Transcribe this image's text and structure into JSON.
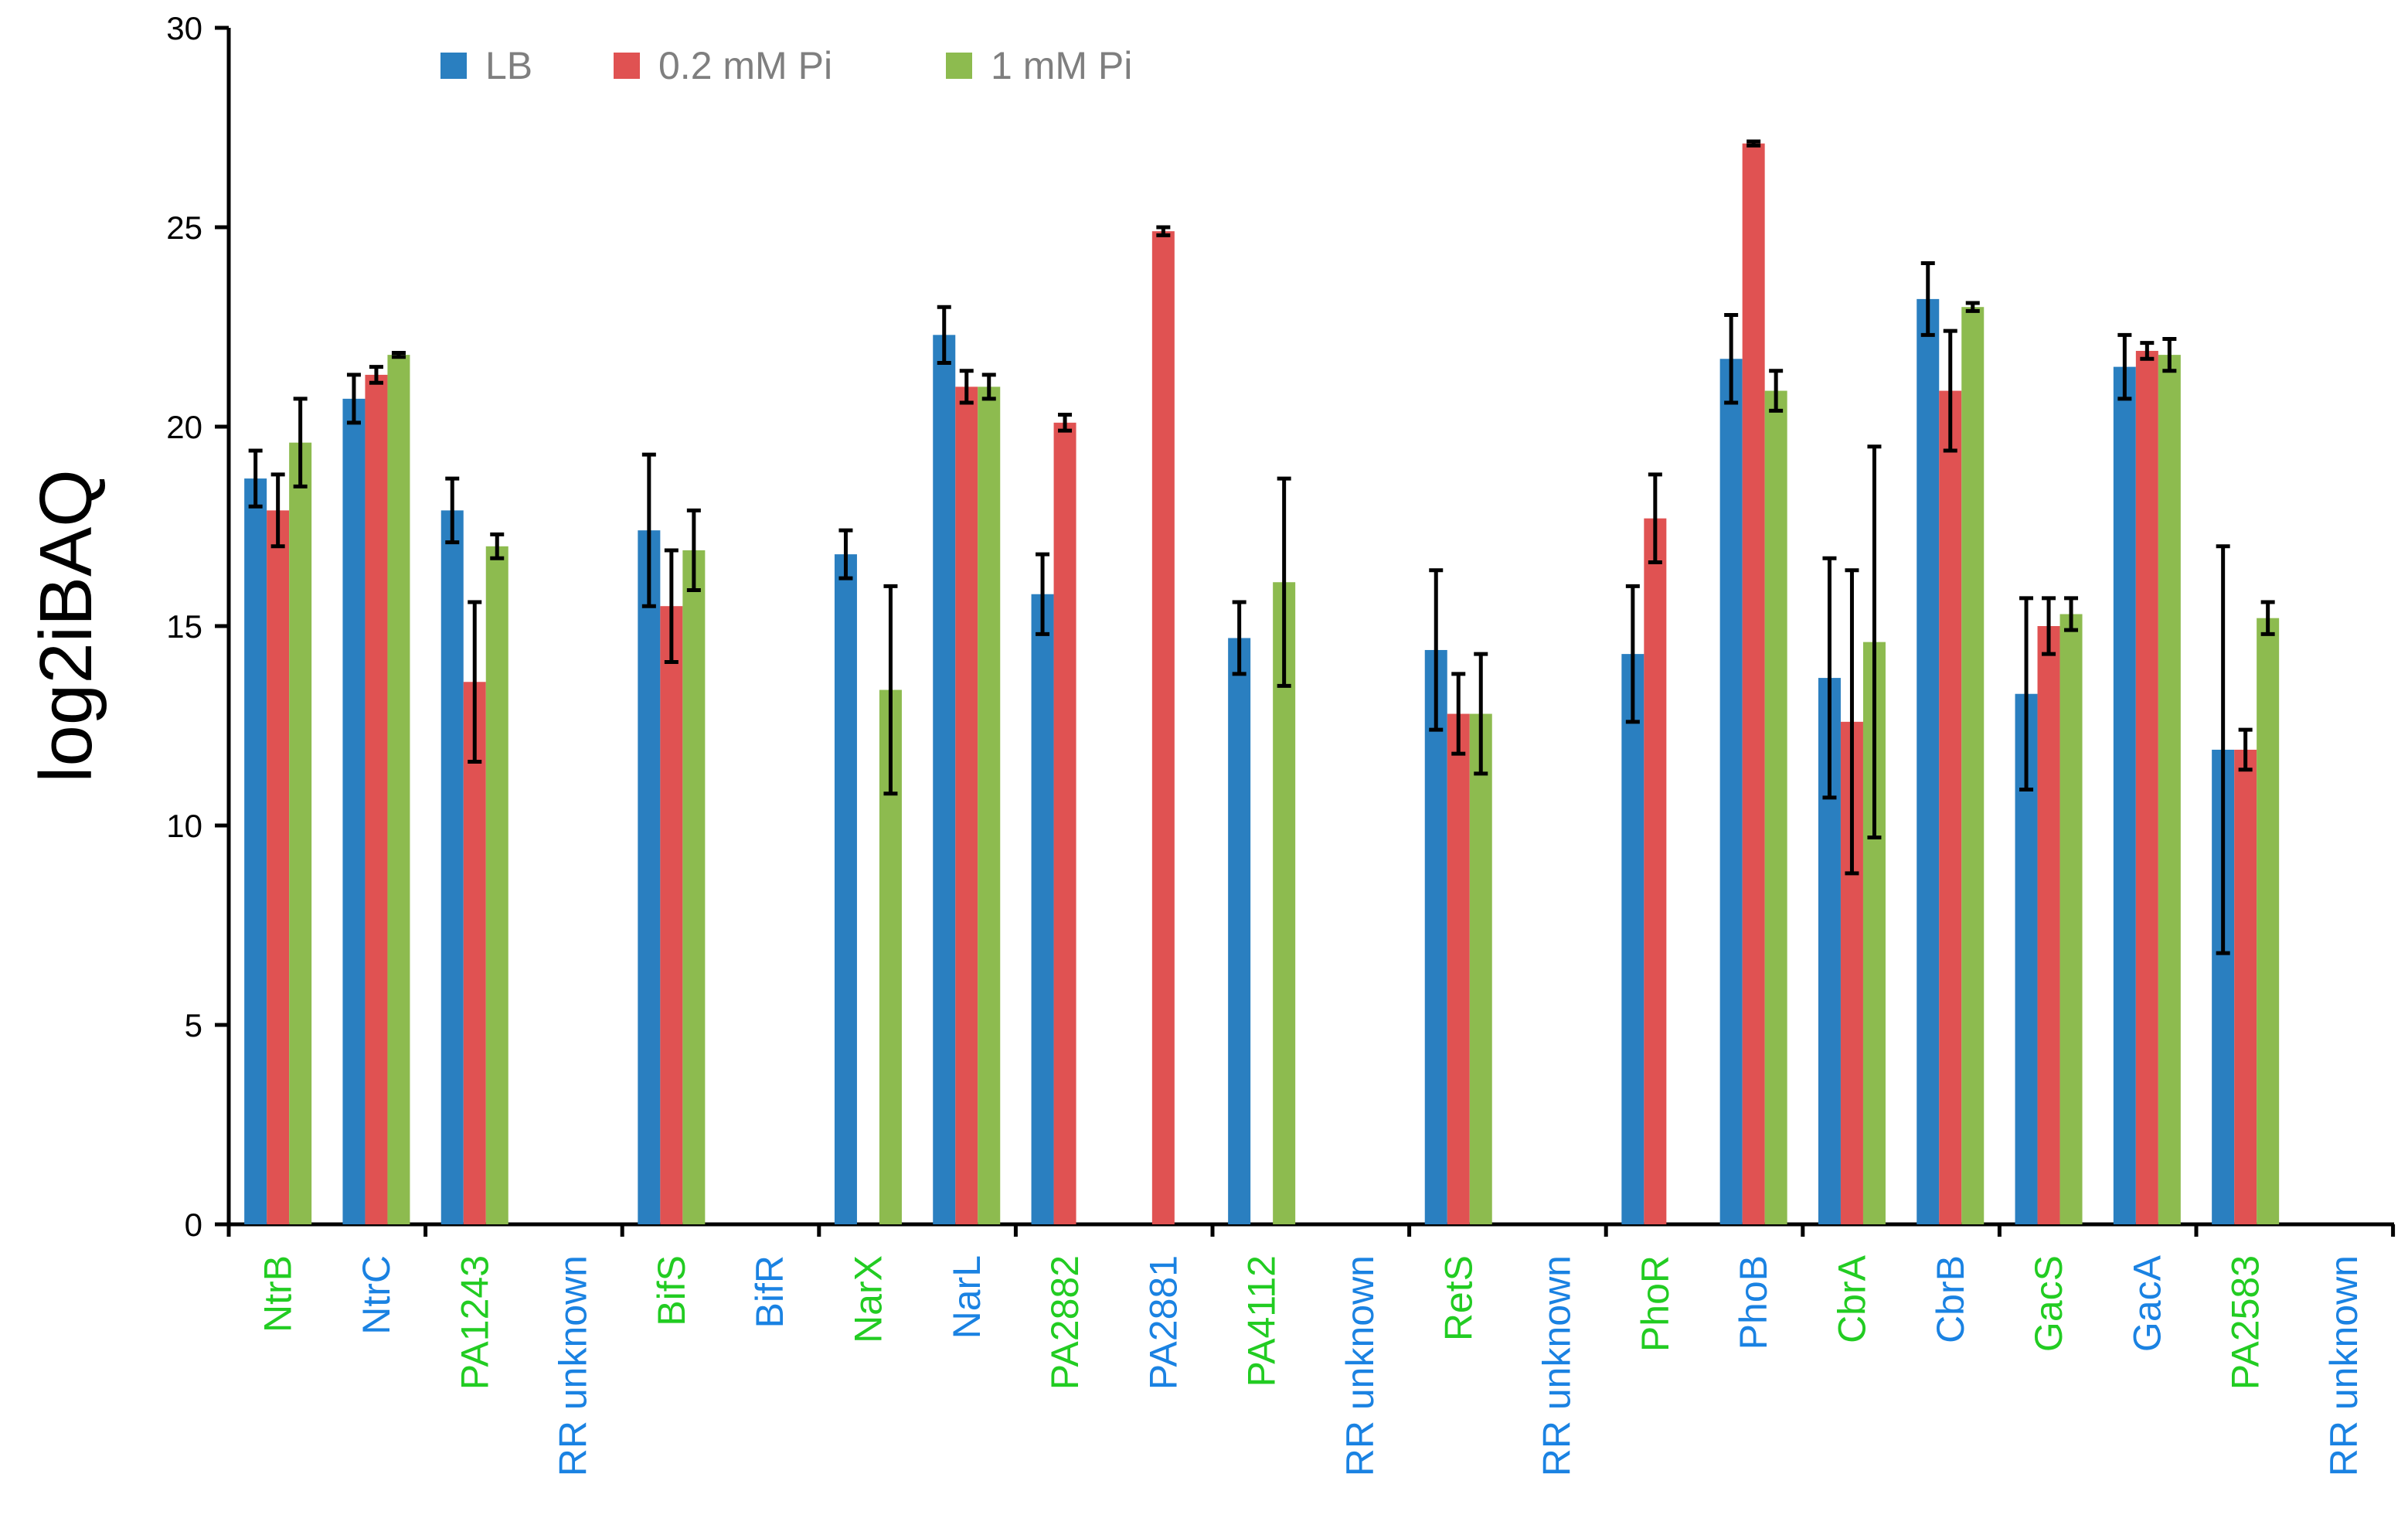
{
  "chart_data": {
    "type": "bar",
    "title": "",
    "xlabel": "",
    "ylabel": "log2iBAQ",
    "ylim": [
      0,
      30
    ],
    "yticks": [
      0,
      5,
      10,
      15,
      20,
      25,
      30
    ],
    "grid": false,
    "legend_position": "top",
    "categories": [
      "NtrB",
      "NtrC",
      "PA1243",
      "RR unknown",
      "BifS",
      "BifR",
      "NarX",
      "NarL",
      "PA2882",
      "PA2881",
      "PA4112",
      "RR unknown",
      "RetS",
      "RR unknown",
      "PhoR",
      "PhoB",
      "CbrA",
      "CbrB",
      "GacS",
      "GacA",
      "PA2583",
      "RR unknown"
    ],
    "category_types": [
      "sensor",
      "regulator",
      "sensor",
      "regulator",
      "sensor",
      "regulator",
      "sensor",
      "regulator",
      "sensor",
      "regulator",
      "sensor",
      "regulator",
      "sensor",
      "regulator",
      "sensor",
      "regulator",
      "sensor",
      "regulator",
      "sensor",
      "regulator",
      "sensor",
      "regulator"
    ],
    "category_colors": {
      "sensor": "#22cc22",
      "regulator": "#1a82e2"
    },
    "series": [
      {
        "name": "LB",
        "color": "#2a7fc0",
        "values": [
          18.7,
          20.7,
          17.9,
          null,
          17.4,
          null,
          16.8,
          22.3,
          15.8,
          null,
          14.7,
          null,
          14.4,
          null,
          14.3,
          21.7,
          13.7,
          23.2,
          13.3,
          21.5,
          11.9,
          null
        ],
        "errors": [
          0.7,
          0.6,
          0.8,
          null,
          1.9,
          null,
          0.6,
          0.7,
          1.0,
          null,
          0.9,
          null,
          2.0,
          null,
          1.7,
          1.1,
          3.0,
          0.9,
          2.4,
          0.8,
          5.1,
          null
        ]
      },
      {
        "name": "0.2 mM Pi",
        "color": "#e05252",
        "values": [
          17.9,
          21.3,
          13.6,
          null,
          15.5,
          null,
          null,
          21.0,
          20.1,
          24.9,
          null,
          null,
          12.8,
          null,
          17.7,
          27.1,
          12.6,
          20.9,
          15.0,
          21.9,
          11.9,
          null
        ],
        "errors": [
          0.9,
          0.2,
          2.0,
          null,
          1.4,
          null,
          null,
          0.4,
          0.2,
          0.1,
          null,
          null,
          1.0,
          null,
          1.1,
          0.05,
          3.8,
          1.5,
          0.7,
          0.2,
          0.5,
          null
        ]
      },
      {
        "name": "1 mM Pi",
        "color": "#8dbb4f",
        "values": [
          19.6,
          21.8,
          17.0,
          null,
          16.9,
          null,
          13.4,
          21.0,
          null,
          null,
          16.1,
          null,
          12.8,
          null,
          null,
          20.9,
          14.6,
          23.0,
          15.3,
          21.8,
          15.2,
          null
        ],
        "errors": [
          1.1,
          0.05,
          0.3,
          null,
          1.0,
          null,
          2.6,
          0.3,
          null,
          null,
          2.6,
          null,
          1.5,
          null,
          null,
          0.5,
          4.9,
          0.1,
          0.4,
          0.4,
          0.4,
          null
        ]
      }
    ]
  }
}
